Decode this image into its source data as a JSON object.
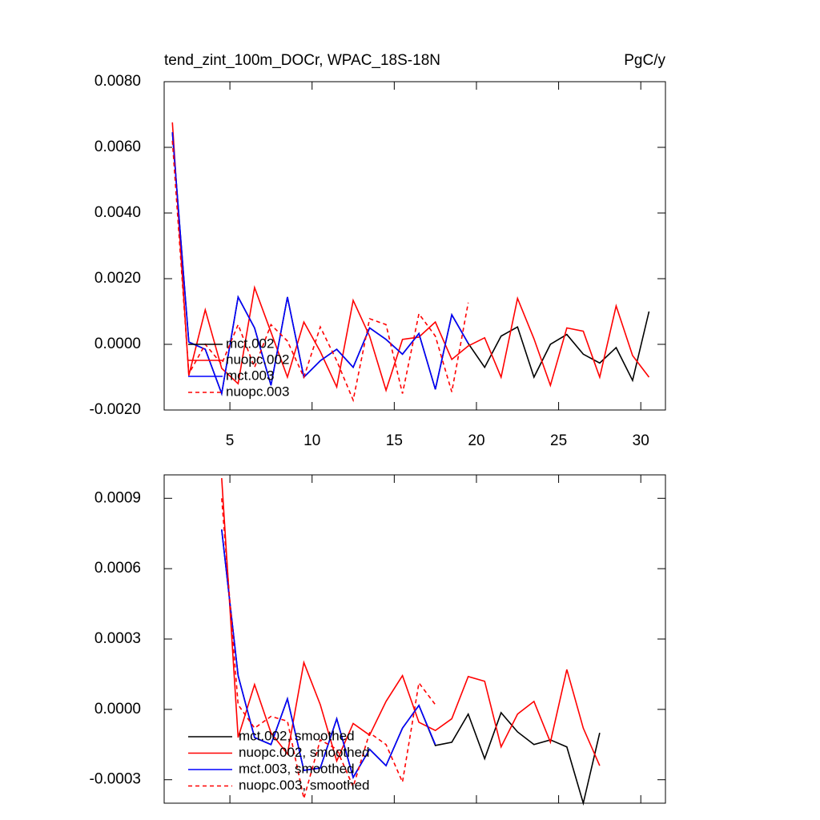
{
  "chart_data": [
    {
      "type": "line",
      "title": "tend_zint_100m_DOCr, WPAC_18S-18N",
      "units": "PgC/y",
      "x": [
        1.5,
        2.5,
        3.5,
        4.5,
        5.5,
        6.5,
        7.5,
        8.5,
        9.5,
        10.5,
        11.5,
        12.5,
        13.5,
        14.5,
        15.5,
        16.5,
        17.5,
        18.5,
        19.5,
        20.5,
        21.5,
        22.5,
        23.5,
        24.5,
        25.5,
        26.5,
        27.5,
        28.5,
        29.5,
        30.5
      ],
      "xlim": [
        1,
        31.5
      ],
      "xticks": [
        5,
        10,
        15,
        20,
        25,
        30
      ],
      "ylim": [
        -0.002,
        0.008
      ],
      "yticks": [
        {
          "value": -0.002,
          "label": "-0.0020"
        },
        {
          "value": 0,
          "label": "0.0000"
        },
        {
          "value": 0.002,
          "label": "0.0020"
        },
        {
          "value": 0.004,
          "label": "0.0040"
        },
        {
          "value": 0.006,
          "label": "0.0060"
        },
        {
          "value": 0.008,
          "label": "0.0080"
        }
      ],
      "legend": "lower left",
      "series": [
        {
          "name": "mct.002",
          "color": "#000000",
          "linestyle": "solid",
          "values": [
            0.00646,
            7e-05,
            -0.00015,
            -0.0015,
            0.00144,
            0.0005,
            -0.00125,
            0.00144,
            -0.001,
            -0.0005,
            -0.00015,
            -0.0007,
            0.0005,
            0.00015,
            -0.0003,
            0.00033,
            -0.00137,
            0.0009,
            3e-05,
            -0.0007,
            0.00025,
            0.00053,
            -0.001,
            0.0,
            0.0003,
            -0.0003,
            -0.00057,
            -0.0001,
            -0.0011,
            0.001
          ]
        },
        {
          "name": "nuopc.002",
          "color": "#ff0000",
          "linestyle": "solid",
          "values": [
            0.00676,
            -0.00095,
            0.00105,
            -0.00073,
            -0.0012,
            0.00173,
            0.00037,
            -0.001,
            0.00068,
            -0.00022,
            -0.0013,
            0.00134,
            0.00025,
            -0.0014,
            0.00015,
            0.00022,
            0.00068,
            -0.00046,
            -5e-05,
            0.0002,
            -0.001,
            0.0014,
            0.00017,
            -0.00125,
            0.0005,
            0.0004,
            -0.001,
            0.00117,
            -0.00034,
            -0.001
          ]
        },
        {
          "name": "mct.003",
          "color": "#0000ff",
          "linestyle": "solid",
          "values": [
            0.00646,
            7e-05,
            -0.00015,
            -0.0015,
            0.00144,
            0.0005,
            -0.00125,
            0.00144,
            -0.001,
            -0.0005,
            -0.00015,
            -0.0007,
            0.0005,
            0.00015,
            -0.0003,
            0.00033,
            -0.00137,
            0.0009,
            3e-05,
            null,
            null,
            null,
            null,
            null,
            null,
            null,
            null,
            null,
            null,
            null
          ]
        },
        {
          "name": "nuopc.003",
          "color": "#ff0000",
          "linestyle": "dashed",
          "values": [
            0.0062,
            -0.0009,
            0.0,
            -0.0006,
            0.0006,
            -0.0007,
            0.0006,
            0.0001,
            -0.001,
            0.00053,
            -0.0005,
            -0.0017,
            0.00078,
            0.0006,
            -0.0015,
            0.00093,
            0.00025,
            -0.00145,
            0.00127,
            null,
            null,
            null,
            null,
            null,
            null,
            null,
            null,
            null,
            null,
            null
          ]
        }
      ]
    },
    {
      "type": "line",
      "x": [
        1.5,
        2.5,
        3.5,
        4.5,
        5.5,
        6.5,
        7.5,
        8.5,
        9.5,
        10.5,
        11.5,
        12.5,
        13.5,
        14.5,
        15.5,
        16.5,
        17.5,
        18.5,
        19.5,
        20.5,
        21.5,
        22.5,
        23.5,
        24.5,
        25.5,
        26.5,
        27.5,
        28.5,
        29.5,
        30.5
      ],
      "xlim": [
        1,
        31.5
      ],
      "xticks": [
        5,
        10,
        15,
        20,
        25,
        30
      ],
      "ylim": [
        -0.0004,
        0.001
      ],
      "yticks": [
        {
          "value": -0.0003,
          "label": "-0.0003"
        },
        {
          "value": 0,
          "label": "0.0000"
        },
        {
          "value": 0.0003,
          "label": "0.0003"
        },
        {
          "value": 0.0006,
          "label": "0.0006"
        },
        {
          "value": 0.0009,
          "label": "0.0009"
        }
      ],
      "legend": "lower left",
      "series": [
        {
          "name": "mct.002, smoothed",
          "color": "#000000",
          "linestyle": "solid",
          "values": [
            null,
            null,
            null,
            0.000767,
            0.000144,
            -0.00012,
            -0.00015,
            4.5e-05,
            -0.00026,
            -0.00025,
            -4e-05,
            -0.00029,
            -0.00017,
            -0.00024,
            -8e-05,
            1.7e-05,
            -0.000154,
            -0.00014,
            -2e-05,
            -0.00021,
            -1.4e-05,
            -9.6e-05,
            -0.00015,
            -0.00013,
            -0.00016,
            -0.0004,
            -0.0001,
            null,
            null,
            null
          ]
        },
        {
          "name": "nuopc.002, smoothed",
          "color": "#ff0000",
          "linestyle": "solid",
          "values": [
            null,
            null,
            null,
            0.000986,
            -0.00012,
            0.000106,
            -0.0001,
            -0.00019,
            0.0002,
            2e-05,
            -0.00022,
            -6e-05,
            -0.00011,
            3.4e-05,
            0.000144,
            -5.5e-05,
            -9e-05,
            -4e-05,
            0.00014,
            0.00012,
            -0.00016,
            -2e-05,
            3.4e-05,
            -0.00014,
            0.00017,
            -8e-05,
            -0.00024,
            null,
            null,
            null
          ]
        },
        {
          "name": "mct.003, smoothed",
          "color": "#0000ff",
          "linestyle": "solid",
          "values": [
            null,
            null,
            null,
            0.000767,
            0.000144,
            -0.00012,
            -0.00015,
            4.5e-05,
            -0.00026,
            -0.00025,
            -4e-05,
            -0.00029,
            -0.00017,
            -0.00024,
            -8e-05,
            1.7e-05,
            -0.00015,
            null,
            null,
            null,
            null,
            null,
            null,
            null,
            null,
            null,
            null,
            null,
            null,
            null
          ]
        },
        {
          "name": "nuopc.003, smoothed",
          "color": "#ff0000",
          "linestyle": "dashed",
          "values": [
            null,
            null,
            null,
            0.0009,
            2e-05,
            -8e-05,
            -3e-05,
            -5e-05,
            -0.00038,
            -0.00013,
            -0.00017,
            -0.00033,
            -0.0001,
            -0.00015,
            -0.00031,
            0.000113,
            2e-05,
            null,
            null,
            null,
            null,
            null,
            null,
            null,
            null,
            null,
            null,
            null,
            null,
            null
          ]
        }
      ]
    }
  ]
}
